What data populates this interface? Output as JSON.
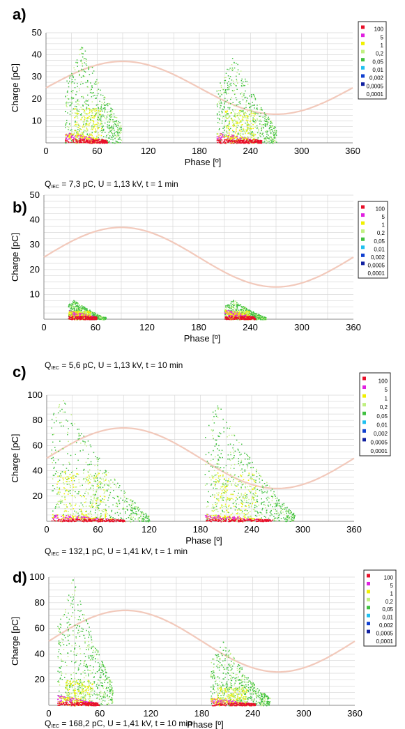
{
  "colors": {
    "grid": "#d8d8d8",
    "sine": "#f2c9bb",
    "axis": "#888888",
    "legend_border": "#222222",
    "density": [
      "#e8102a",
      "#e020e0",
      "#f0f000",
      "#c0f080",
      "#40c040",
      "#20c0f0",
      "#1040d0",
      "#1020a0",
      "#0a1060"
    ]
  },
  "legend": {
    "labels": [
      "100",
      "5",
      "1",
      "0,2",
      "0,05",
      "0,01",
      "0,002",
      "0,0005",
      "0,0001"
    ]
  },
  "chart_data": [
    {
      "type": "scatter",
      "panel_label": "a)",
      "xlabel": "Phase [º]",
      "ylabel": "Charge [pC]",
      "xlim": [
        0,
        360
      ],
      "ylim": [
        0,
        50
      ],
      "xticks": [
        "0",
        "60",
        "120",
        "180",
        "240",
        "300",
        "360"
      ],
      "yticks": [
        "10",
        "20",
        "30",
        "40",
        "50"
      ],
      "caption_prefix": "Q",
      "caption_sub": "IEC",
      "caption_rest": " = 7,3 pC, U = 1,13 kV, t = 1 min",
      "sine": {
        "offset": 25,
        "amplitude": 12
      },
      "clusters": [
        {
          "start": 22,
          "peak": 42,
          "end": 88,
          "max": 46,
          "dense_max": 5,
          "mid_max": 32
        },
        {
          "start": 200,
          "peak": 220,
          "end": 270,
          "max": 40,
          "dense_max": 5,
          "mid_max": 30
        }
      ]
    },
    {
      "type": "scatter",
      "panel_label": "b)",
      "xlabel": "Phase [º]",
      "ylabel": "Charge [pC]",
      "xlim": [
        0,
        360
      ],
      "ylim": [
        0,
        50
      ],
      "xticks": [
        "0",
        "60",
        "120",
        "180",
        "240",
        "300",
        "360"
      ],
      "yticks": [
        "10",
        "20",
        "30",
        "40",
        "50"
      ],
      "caption_prefix": "Q",
      "caption_sub": "IEC",
      "caption_rest": " = 5,6 pC, U = 1,13 kV, t = 10 min",
      "sine": {
        "offset": 25,
        "amplitude": 12
      },
      "clusters": [
        {
          "start": 28,
          "peak": 35,
          "end": 72,
          "max": 8,
          "dense_max": 4,
          "mid_max": 7
        },
        {
          "start": 210,
          "peak": 220,
          "end": 258,
          "max": 8,
          "dense_max": 4,
          "mid_max": 7
        }
      ]
    },
    {
      "type": "scatter",
      "panel_label": "c)",
      "xlabel": "Phase [º]",
      "ylabel": "Charge [pC]",
      "xlim": [
        0,
        360
      ],
      "ylim": [
        0,
        100
      ],
      "xticks": [
        "0",
        "60",
        "120",
        "180",
        "240",
        "300",
        "360"
      ],
      "yticks": [
        "20",
        "40",
        "60",
        "80",
        "100"
      ],
      "caption_prefix": "Q",
      "caption_sub": "IEC",
      "caption_rest": " = 132,1 pC, U = 1,41 kV, t = 1 min",
      "sine": {
        "offset": 50,
        "amplitude": 24
      },
      "clusters": [
        {
          "start": 5,
          "peak": 18,
          "end": 120,
          "max": 98,
          "dense_max": 6,
          "mid_max": 80
        },
        {
          "start": 185,
          "peak": 200,
          "end": 290,
          "max": 95,
          "dense_max": 6,
          "mid_max": 78
        }
      ]
    },
    {
      "type": "scatter",
      "panel_label": "d)",
      "xlabel": "Phase [º]",
      "ylabel": "Charge [pC]",
      "xlim": [
        0,
        360
      ],
      "ylim": [
        0,
        100
      ],
      "xticks": [
        "0",
        "60",
        "120",
        "180",
        "240",
        "300",
        "360"
      ],
      "yticks": [
        "20",
        "40",
        "60",
        "80",
        "100"
      ],
      "caption_prefix": "Q",
      "caption_sub": "IEC",
      "caption_rest": " = 168,2 pC, U = 1,41 kV, t = 10 min",
      "sine": {
        "offset": 50,
        "amplitude": 24
      },
      "clusters": [
        {
          "start": 10,
          "peak": 28,
          "end": 75,
          "max": 100,
          "dense_max": 8,
          "mid_max": 40
        },
        {
          "start": 190,
          "peak": 205,
          "end": 260,
          "max": 50,
          "dense_max": 6,
          "mid_max": 28
        }
      ]
    }
  ]
}
